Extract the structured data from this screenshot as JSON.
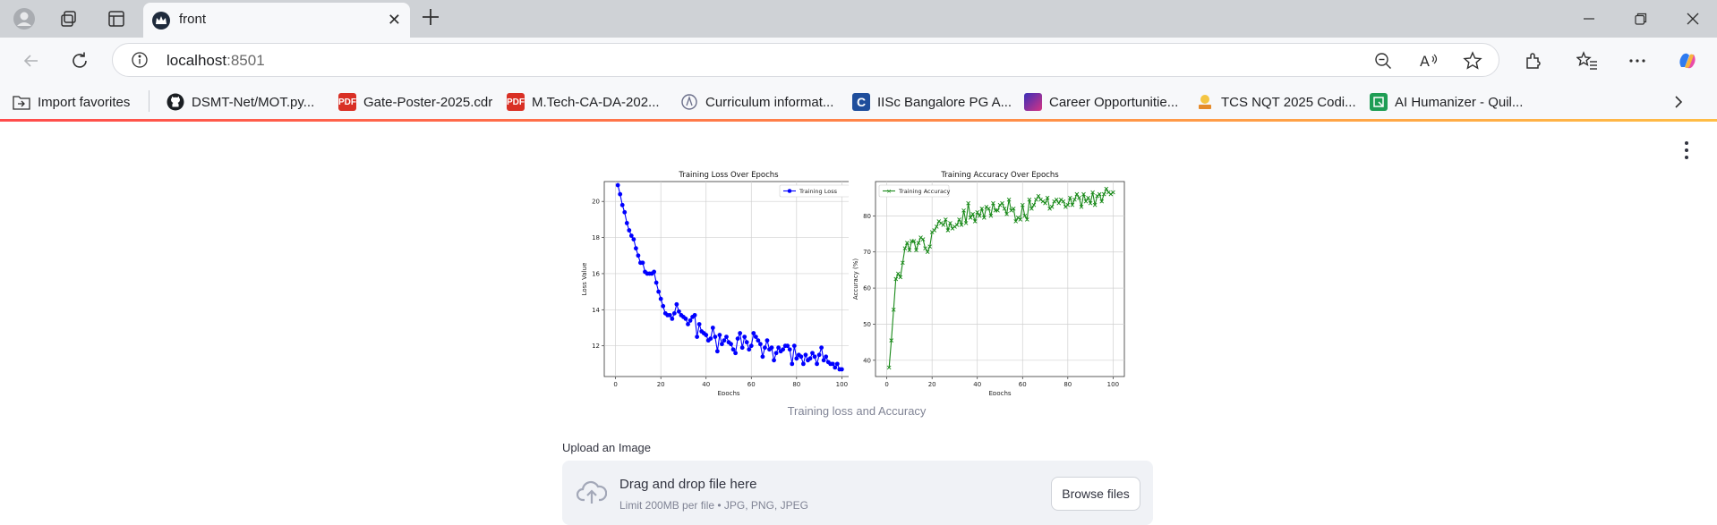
{
  "browser": {
    "tab": {
      "title": "front"
    },
    "new_tab_icon": "plus-icon",
    "address": {
      "host": "localhost",
      "port": ":8501"
    },
    "bookmarks": [
      {
        "label": "Import favorites",
        "icon": "folder-import-icon"
      },
      {
        "label": "DSMT-Net/MOT.py...",
        "icon": "github-icon"
      },
      {
        "label": "Gate-Poster-2025.cdr",
        "icon": "pdf-icon"
      },
      {
        "label": "M.Tech-CA-DA-202...",
        "icon": "pdf-icon"
      },
      {
        "label": "Curriculum informat...",
        "icon": "site-icon"
      },
      {
        "label": "IISc Bangalore PG A...",
        "icon": "c-icon"
      },
      {
        "label": "Career Opportunitie...",
        "icon": "site-icon"
      },
      {
        "label": "TCS NQT 2025 Codi...",
        "icon": "site-icon"
      },
      {
        "label": "AI Humanizer - Quil...",
        "icon": "quill-icon"
      }
    ]
  },
  "page": {
    "caption": "Training loss and Accuracy",
    "upload": {
      "label": "Upload an Image",
      "drop_text": "Drag and drop file here",
      "limit_text": "Limit 200MB per file • JPG, PNG, JPEG",
      "browse_label": "Browse files"
    }
  },
  "colors": {
    "loss": "#0000ff",
    "accuracy": "#1a8a1a",
    "accent": "#ff4b4b"
  },
  "chart_data": [
    {
      "type": "line",
      "title": "Training Loss Over Epochs",
      "xlabel": "Epochs",
      "ylabel": "Loss Value",
      "legend": "top-right",
      "grid": true,
      "xlim": [
        -5,
        105
      ],
      "ylim": [
        10.3,
        21.1
      ],
      "xticks": [
        0,
        20,
        40,
        60,
        80,
        100
      ],
      "yticks": [
        12,
        14,
        16,
        18,
        20
      ],
      "series": [
        {
          "name": "Training Loss",
          "x": [
            1,
            2,
            3,
            4,
            5,
            6,
            7,
            8,
            9,
            10,
            11,
            12,
            13,
            14,
            15,
            16,
            17,
            18,
            19,
            20,
            21,
            22,
            23,
            24,
            25,
            26,
            27,
            28,
            29,
            30,
            31,
            32,
            33,
            34,
            35,
            36,
            37,
            38,
            39,
            40,
            41,
            42,
            43,
            44,
            45,
            46,
            47,
            48,
            49,
            50,
            51,
            52,
            53,
            54,
            55,
            56,
            57,
            58,
            59,
            60,
            61,
            62,
            63,
            64,
            65,
            66,
            67,
            68,
            69,
            70,
            71,
            72,
            73,
            74,
            75,
            76,
            77,
            78,
            79,
            80,
            81,
            82,
            83,
            84,
            85,
            86,
            87,
            88,
            89,
            90,
            91,
            92,
            93,
            94,
            95,
            96,
            97,
            98,
            99,
            100
          ],
          "values": [
            20.9,
            20.4,
            19.8,
            19.4,
            18.8,
            18.4,
            18.1,
            17.9,
            17.4,
            17.0,
            16.6,
            16.6,
            16.1,
            16.0,
            16.0,
            16.0,
            16.1,
            15.5,
            15.0,
            14.6,
            14.2,
            13.8,
            13.7,
            13.7,
            13.5,
            13.8,
            14.3,
            13.9,
            13.7,
            13.6,
            13.5,
            13.2,
            13.4,
            13.6,
            13.7,
            12.5,
            13.2,
            12.8,
            12.7,
            12.6,
            12.3,
            12.4,
            13.0,
            12.5,
            11.7,
            12.6,
            12.1,
            12.3,
            12.5,
            12.2,
            12.1,
            11.8,
            11.6,
            12.4,
            12.7,
            11.9,
            12.5,
            12.2,
            11.8,
            12.0,
            12.7,
            12.5,
            12.3,
            12.1,
            11.4,
            11.9,
            12.3,
            11.8,
            11.9,
            11.2,
            11.6,
            11.9,
            11.7,
            11.8,
            12.0,
            12.0,
            11.8,
            11.0,
            12.0,
            11.3,
            11.5,
            11.4,
            11.0,
            11.5,
            11.2,
            11.3,
            11.6,
            11.4,
            11.0,
            11.5,
            11.9,
            11.2,
            11.4,
            11.1,
            11.0,
            11.0,
            10.8,
            11.0,
            10.7,
            10.7
          ]
        }
      ]
    },
    {
      "type": "line",
      "title": "Training Accuracy Over Epochs",
      "xlabel": "Epochs",
      "ylabel": "Accuracy (%)",
      "legend": "top-left",
      "grid": true,
      "xlim": [
        -5,
        105
      ],
      "ylim": [
        35.5,
        89.5
      ],
      "xticks": [
        0,
        20,
        40,
        60,
        80,
        100
      ],
      "yticks": [
        40,
        50,
        60,
        70,
        80
      ],
      "series": [
        {
          "name": "Training Accuracy",
          "x": [
            1,
            2,
            3,
            4,
            5,
            6,
            7,
            8,
            9,
            10,
            11,
            12,
            13,
            14,
            15,
            16,
            17,
            18,
            19,
            20,
            21,
            22,
            23,
            24,
            25,
            26,
            27,
            28,
            29,
            30,
            31,
            32,
            33,
            34,
            35,
            36,
            37,
            38,
            39,
            40,
            41,
            42,
            43,
            44,
            45,
            46,
            47,
            48,
            49,
            50,
            51,
            52,
            53,
            54,
            55,
            56,
            57,
            58,
            59,
            60,
            61,
            62,
            63,
            64,
            65,
            66,
            67,
            68,
            69,
            70,
            71,
            72,
            73,
            74,
            75,
            76,
            77,
            78,
            79,
            80,
            81,
            82,
            83,
            84,
            85,
            86,
            87,
            88,
            89,
            90,
            91,
            92,
            93,
            94,
            95,
            96,
            97,
            98,
            99,
            100
          ],
          "values": [
            38,
            45.5,
            54,
            62.5,
            64,
            63,
            67,
            71,
            72.5,
            70.5,
            73,
            73,
            70.5,
            72.5,
            74,
            73.5,
            71,
            70,
            71.5,
            75.5,
            76,
            77,
            78.5,
            78,
            77.5,
            79,
            76,
            78,
            76.5,
            77,
            77.5,
            79,
            77.5,
            81.5,
            78,
            83.5,
            79.5,
            80.5,
            78.5,
            81,
            80,
            82,
            79.5,
            82.5,
            82,
            80,
            83.5,
            81.5,
            81.5,
            83,
            83.5,
            82,
            80.5,
            84.5,
            81.5,
            82,
            78.5,
            79.5,
            79,
            83,
            80,
            79,
            84.5,
            82,
            83,
            84.5,
            85.5,
            84.5,
            84,
            83.5,
            85,
            82,
            82.5,
            84,
            84.5,
            83.5,
            84.5,
            84,
            82.5,
            83,
            85,
            83,
            84.5,
            86,
            85,
            82.5,
            86,
            84,
            85,
            83.5,
            86.5,
            83,
            85.5,
            86,
            84,
            86,
            87.5,
            86.5,
            86,
            86.5
          ]
        }
      ]
    }
  ]
}
